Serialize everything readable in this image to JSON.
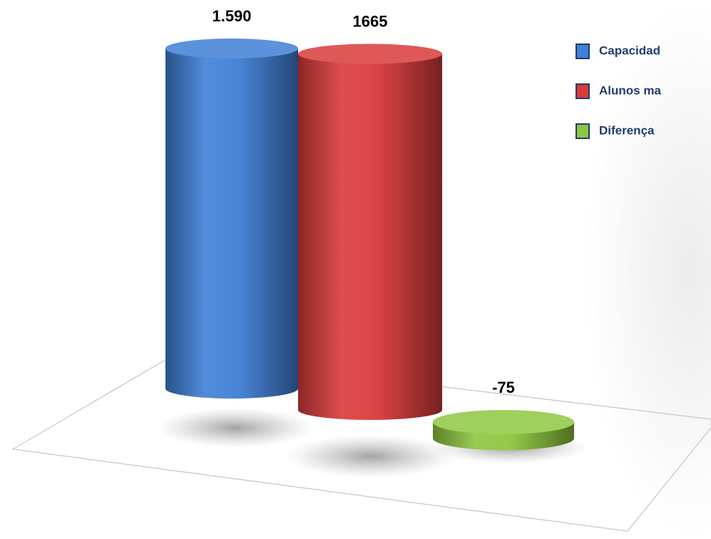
{
  "chart_data": {
    "type": "bar",
    "series": [
      {
        "name": "Capacidad",
        "color": "#3f7fd6",
        "values": [
          1590
        ],
        "value_labels": [
          "1.590"
        ]
      },
      {
        "name": "Alunos ma",
        "color": "#d93a3a",
        "values": [
          1665
        ],
        "value_labels": [
          "1665"
        ]
      },
      {
        "name": "Diferença",
        "color": "#8ec63f",
        "values": [
          -75
        ],
        "value_labels": [
          "-75"
        ]
      }
    ]
  }
}
